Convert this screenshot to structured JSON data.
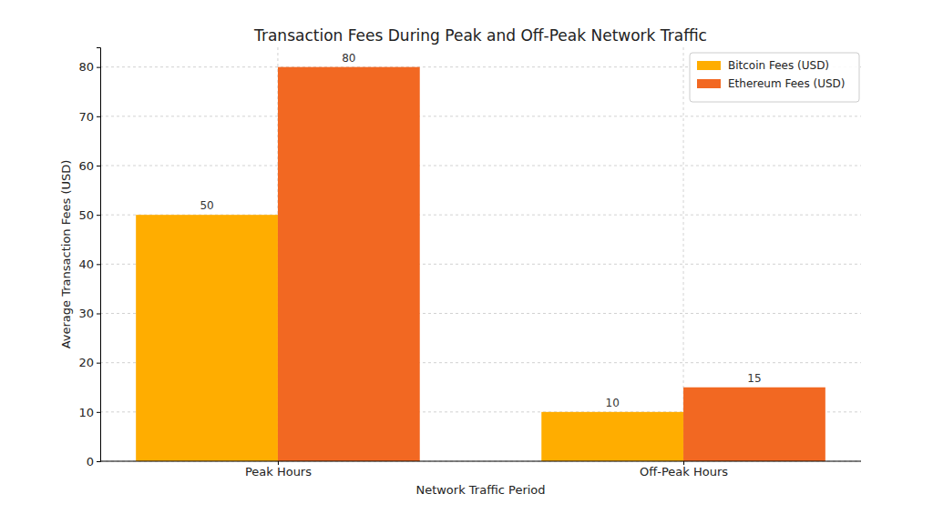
{
  "chart_data": {
    "type": "bar",
    "title": "Transaction Fees During Peak and Off-Peak Network Traffic",
    "x_label": "Network Traffic Period",
    "y_label": "Average Transaction Fees (USD)",
    "categories": [
      "Peak Hours",
      "Off-Peak Hours"
    ],
    "series": [
      {
        "name": "Bitcoin Fees (USD)",
        "color": "#ffad00",
        "values": [
          50,
          10
        ]
      },
      {
        "name": "Ethereum Fees (USD)",
        "color": "#f26822",
        "values": [
          80,
          15
        ]
      }
    ],
    "ylim": [
      0,
      84
    ],
    "yticks": [
      0,
      10,
      20,
      30,
      40,
      50,
      60,
      70,
      80
    ],
    "grid": true,
    "legend": "upper right",
    "data_labels": true
  }
}
